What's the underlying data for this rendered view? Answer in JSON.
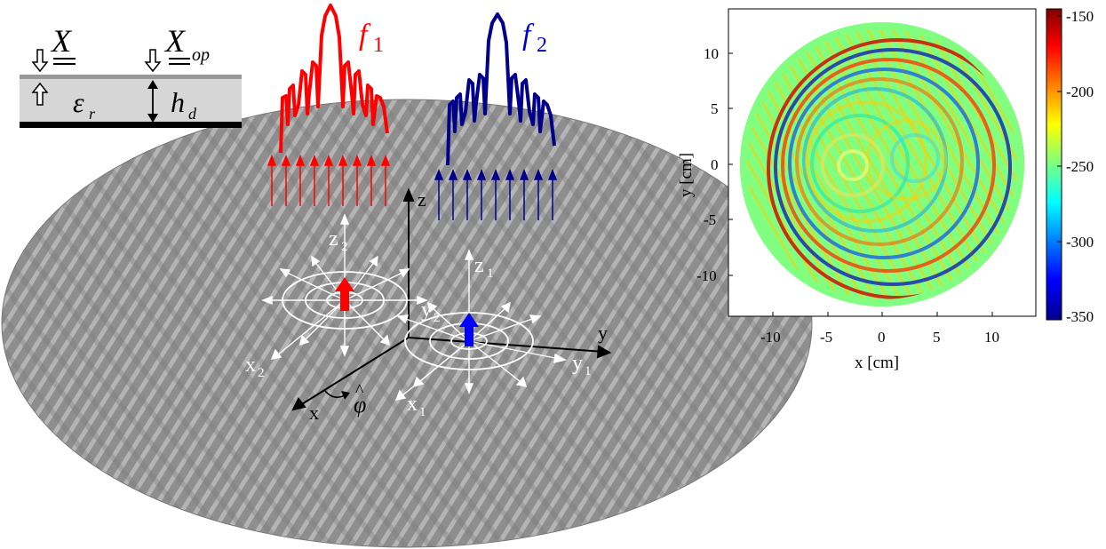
{
  "inset": {
    "X_label": "X",
    "Xop_label": "X",
    "Xop_sub": "op",
    "eps_label": "ε",
    "eps_sub": "r",
    "h_label": "h",
    "h_sub": "d"
  },
  "freq": {
    "f1_label": "f",
    "f1_sub": "1",
    "f1_color": "#ff0000",
    "f2_label": "f",
    "f2_sub": "2",
    "f2_color": "#00008b"
  },
  "axes3d": {
    "global_z": "z",
    "global_y": "y",
    "global_x": "x",
    "phi_label": "φ",
    "phi_hat": "^",
    "source2_z": "z",
    "source2_z_sub": "2",
    "source2_y": "y",
    "source2_y_sub": "2",
    "source2_x": "x",
    "source2_x_sub": "2",
    "source1_z": "z",
    "source1_z_sub": "1",
    "source1_y": "y",
    "source1_y_sub": "1",
    "source1_x": "x",
    "source1_x_sub": "1"
  },
  "plot": {
    "xlabel": "x [cm]",
    "ylabel": "y [cm]",
    "xticks": [
      "-10",
      "-5",
      "0",
      "5",
      "10"
    ],
    "yticks": [
      "10",
      "5",
      "0",
      "-5",
      "-10"
    ],
    "colorbar_ticks": [
      "-150",
      "-200",
      "-250",
      "-300",
      "-350"
    ]
  }
}
